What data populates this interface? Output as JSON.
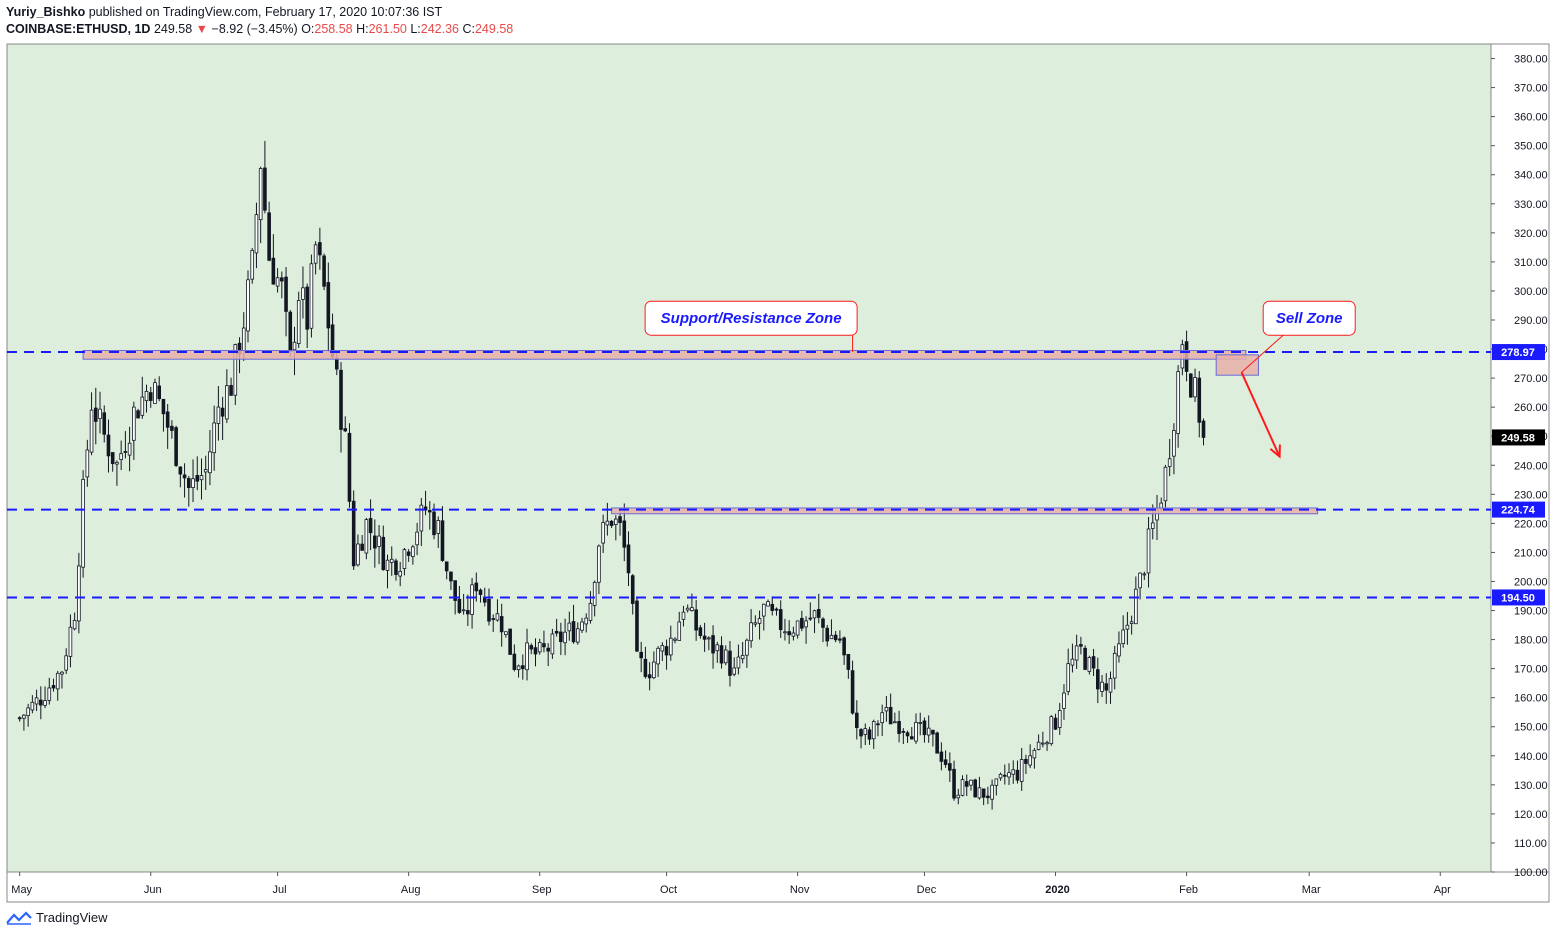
{
  "header": {
    "author": "Yuriy_Bishko",
    "published_text": "published on TradingView.com, February 17, 2020 10:07:36 IST",
    "symbol": "COINBASE:ETHUSD, 1D",
    "last": "249.58",
    "change": "−8.92 (−3.45%)",
    "o_label": "O:",
    "o_value": "258.58",
    "h_label": "H:",
    "h_value": "261.50",
    "l_label": "L:",
    "l_value": "242.36",
    "c_label": "C:",
    "c_value": "249.58"
  },
  "footer": {
    "brand": "TradingView"
  },
  "colors": {
    "background": "#ddeedd",
    "candle": "#131722",
    "level_line": "#1a1aff",
    "zone_fill": "#e8b0a8",
    "annotation_red": "#ff1a1a",
    "annotation_text": "#1a1aff"
  },
  "chart_data": {
    "type": "candlestick",
    "ylim": [
      100,
      385
    ],
    "y_ticks": [
      "380.00",
      "370.00",
      "360.00",
      "350.00",
      "340.00",
      "330.00",
      "320.00",
      "310.00",
      "300.00",
      "290.00",
      "280.00",
      "270.00",
      "260.00",
      "250.00",
      "240.00",
      "230.00",
      "220.00",
      "210.00",
      "200.00",
      "190.00",
      "180.00",
      "170.00",
      "160.00",
      "150.00",
      "140.00",
      "130.00",
      "120.00",
      "110.00",
      "100.00"
    ],
    "y_tick_values": [
      380,
      370,
      360,
      350,
      340,
      330,
      320,
      310,
      300,
      290,
      280,
      270,
      260,
      250,
      240,
      230,
      220,
      210,
      200,
      190,
      180,
      170,
      160,
      150,
      140,
      130,
      120,
      110,
      100
    ],
    "x_ticks": [
      "May",
      "Jun",
      "Jul",
      "Aug",
      "Sep",
      "Oct",
      "Nov",
      "Dec",
      "2020",
      "Feb",
      "Mar",
      "Apr"
    ],
    "x_tick_days": [
      0,
      31,
      61,
      92,
      123,
      153,
      184,
      214,
      245,
      276,
      305,
      336
    ],
    "x_range_days": [
      -3,
      348
    ],
    "price_labels": [
      {
        "value": 278.97,
        "text": "278.97",
        "style": "level"
      },
      {
        "value": 249.58,
        "text": "249.58",
        "style": "last"
      },
      {
        "value": 224.74,
        "text": "224.74",
        "style": "level"
      },
      {
        "value": 194.5,
        "text": "194.50",
        "style": "level"
      }
    ],
    "levels": [
      278.97,
      224.74,
      194.5
    ],
    "zones": [
      {
        "from_day": 15,
        "to_day": 290,
        "low": 276.5,
        "high": 279.5
      },
      {
        "from_day": 140,
        "to_day": 307,
        "low": 223.3,
        "high": 225.3
      },
      {
        "from_day": 283,
        "to_day": 293,
        "low": 271.0,
        "high": 278.0
      }
    ],
    "annotations": [
      {
        "text": "Support/Resistance Zone",
        "day": 173,
        "price": 292,
        "pointer_day": 197,
        "pointer_price": 279
      },
      {
        "text": "Sell Zone",
        "day": 305,
        "price": 292,
        "pointer_day": 289,
        "pointer_price": 272
      }
    ],
    "arrow": {
      "from_day": 289,
      "from_price": 272,
      "to_day": 298,
      "to_price": 243
    },
    "anchors": [
      [
        0,
        153
      ],
      [
        5,
        160
      ],
      [
        10,
        170
      ],
      [
        13,
        190
      ],
      [
        15,
        230
      ],
      [
        17,
        262
      ],
      [
        20,
        250
      ],
      [
        23,
        240
      ],
      [
        27,
        258
      ],
      [
        31,
        268
      ],
      [
        34,
        258
      ],
      [
        37,
        245
      ],
      [
        40,
        232
      ],
      [
        44,
        238
      ],
      [
        47,
        260
      ],
      [
        50,
        268
      ],
      [
        53,
        290
      ],
      [
        55,
        308
      ],
      [
        57,
        345
      ],
      [
        59,
        312
      ],
      [
        62,
        300
      ],
      [
        64,
        275
      ],
      [
        66,
        300
      ],
      [
        68,
        290
      ],
      [
        70,
        315
      ],
      [
        72,
        300
      ],
      [
        74,
        278
      ],
      [
        77,
        248
      ],
      [
        79,
        208
      ],
      [
        82,
        220
      ],
      [
        84,
        215
      ],
      [
        87,
        206
      ],
      [
        90,
        208
      ],
      [
        93,
        216
      ],
      [
        96,
        225
      ],
      [
        99,
        218
      ],
      [
        102,
        198
      ],
      [
        105,
        186
      ],
      [
        108,
        200
      ],
      [
        111,
        191
      ],
      [
        114,
        186
      ],
      [
        117,
        172
      ],
      [
        120,
        175
      ],
      [
        123,
        175
      ],
      [
        126,
        178
      ],
      [
        129,
        182
      ],
      [
        132,
        184
      ],
      [
        135,
        194
      ],
      [
        137,
        214
      ],
      [
        140,
        222
      ],
      [
        142,
        218
      ],
      [
        144,
        204
      ],
      [
        146,
        172
      ],
      [
        149,
        170
      ],
      [
        151,
        175
      ],
      [
        153,
        178
      ],
      [
        155,
        182
      ],
      [
        157,
        192
      ],
      [
        160,
        184
      ],
      [
        163,
        178
      ],
      [
        166,
        176
      ],
      [
        169,
        168
      ],
      [
        171,
        174
      ],
      [
        173,
        182
      ],
      [
        176,
        190
      ],
      [
        179,
        186
      ],
      [
        182,
        184
      ],
      [
        185,
        186
      ],
      [
        188,
        188
      ],
      [
        191,
        182
      ],
      [
        194,
        180
      ],
      [
        196,
        167
      ],
      [
        198,
        148
      ],
      [
        201,
        146
      ],
      [
        204,
        155
      ],
      [
        207,
        152
      ],
      [
        210,
        150
      ],
      [
        213,
        148
      ],
      [
        216,
        145
      ],
      [
        219,
        138
      ],
      [
        221,
        128
      ],
      [
        224,
        130
      ],
      [
        227,
        127
      ],
      [
        230,
        127
      ],
      [
        233,
        133
      ],
      [
        236,
        134
      ],
      [
        239,
        140
      ],
      [
        242,
        146
      ],
      [
        245,
        152
      ],
      [
        248,
        170
      ],
      [
        251,
        176
      ],
      [
        254,
        168
      ],
      [
        257,
        162
      ],
      [
        260,
        176
      ],
      [
        263,
        190
      ],
      [
        265,
        200
      ],
      [
        267,
        213
      ],
      [
        269,
        224
      ],
      [
        271,
        237
      ],
      [
        273,
        258
      ],
      [
        275,
        284
      ],
      [
        277,
        270
      ],
      [
        279,
        258
      ],
      [
        280,
        249.58
      ]
    ]
  }
}
